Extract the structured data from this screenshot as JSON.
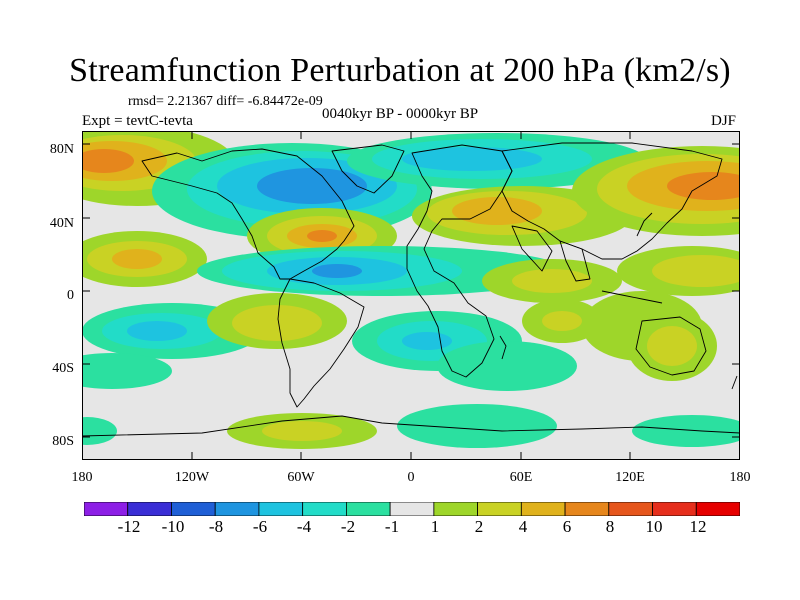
{
  "title": "Streamfunction Perturbation at 200 hPa (km2/s)",
  "stats": "rmsd= 2.21367 diff= -6.84472e-09",
  "experiment": "Expt = tevtC-tevta",
  "period": "0040kyr BP - 0000kyr BP",
  "season": "DJF",
  "map": {
    "lat_ticks": [
      "80N",
      "40N",
      "0",
      "40S",
      "80S"
    ],
    "lon_ticks": [
      "180",
      "120W",
      "60W",
      "0",
      "60E",
      "120E",
      "180"
    ]
  },
  "colorbar": {
    "labels": [
      "-12",
      "-10",
      "-8",
      "-6",
      "-4",
      "-2",
      "-1",
      "1",
      "2",
      "4",
      "6",
      "8",
      "10",
      "12"
    ],
    "colors": [
      "#8d1fe6",
      "#3a2ed6",
      "#1f5fd6",
      "#1f95e0",
      "#1ec3e0",
      "#22dcc8",
      "#2be0a0",
      "#e6e6e6",
      "#9ed62a",
      "#c9d224",
      "#e0b21c",
      "#e6861c",
      "#e6561c",
      "#e62e1c",
      "#e60000"
    ]
  }
}
